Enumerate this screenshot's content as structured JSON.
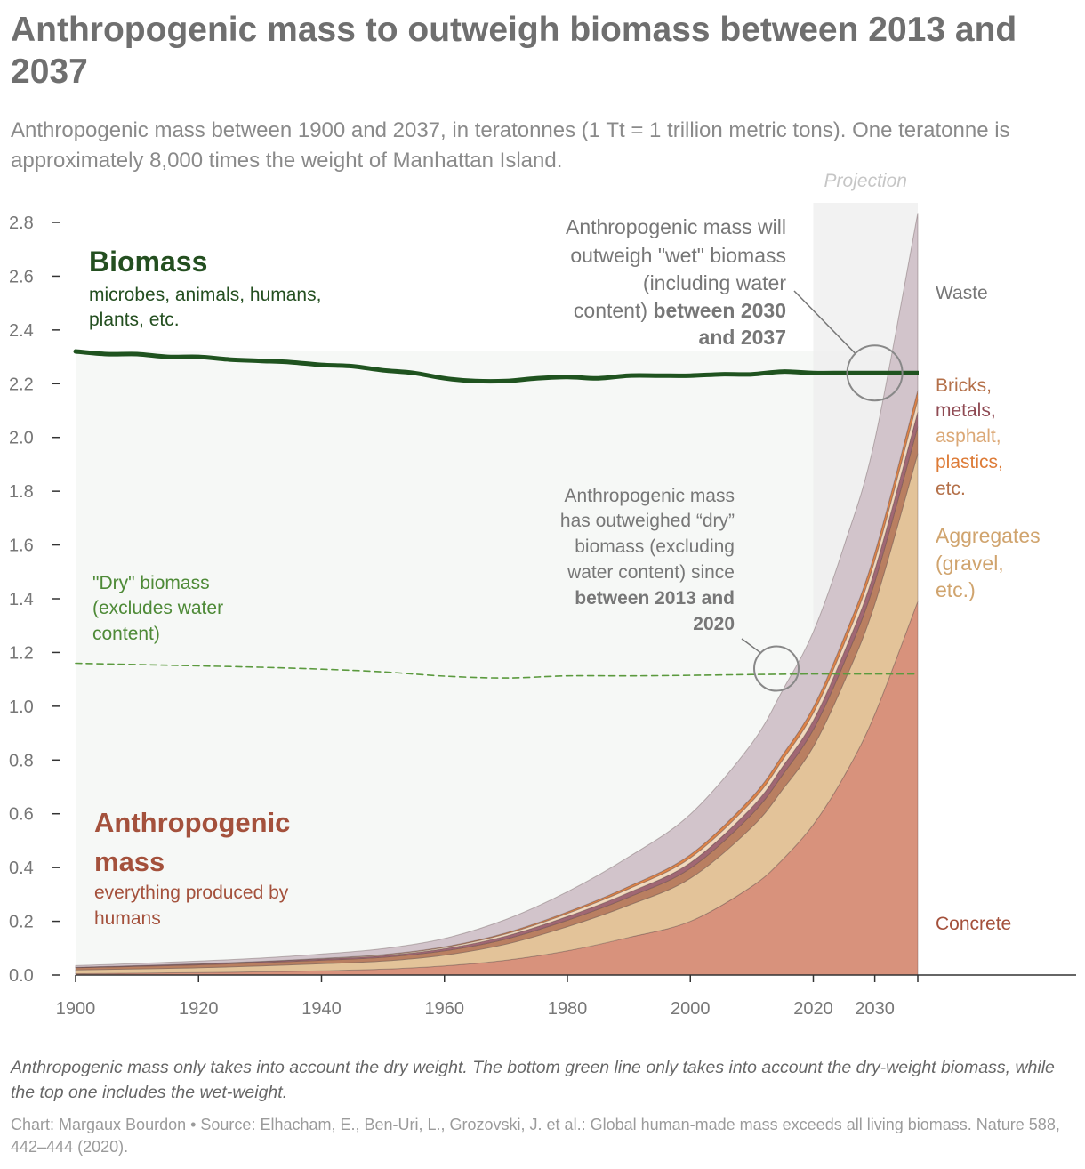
{
  "header": {
    "title": "Anthropogenic mass to outweigh biomass between 2013 and 2037",
    "subtitle": "Anthropogenic mass between 1900 and 2037, in teratonnes (1 Tt = 1 trillion metric tons). One teratonne is approximately 8,000 times the weight of Manhattan Island."
  },
  "footer": {
    "note": "Anthropogenic mass only takes into account the dry weight. The bottom green line only takes into account the dry-weight biomass, while the top one includes the wet-weight.",
    "credit": "Chart: Margaux Bourdon • Source: Elhacham, E., Ben-Uri, L., Grozovski, J. et al.: Global human-made mass exceeds all living biomass. Nature 588, 442–444 (2020)."
  },
  "chart_data": {
    "type": "area",
    "stacked": true,
    "xlim": [
      1900,
      2037
    ],
    "ylim": [
      0,
      2.8
    ],
    "yticks": [
      0.0,
      0.2,
      0.4,
      0.6,
      0.8,
      1.0,
      1.2,
      1.4,
      1.6,
      1.8,
      2.0,
      2.2,
      2.4,
      2.6,
      2.8
    ],
    "ytick_labels": [
      "0.0",
      "0.2",
      "0.4",
      "0.6",
      "0.8",
      "1.0",
      "1.2",
      "1.4",
      "1.6",
      "1.8",
      "2.0",
      "2.2",
      "2.4",
      "2.6",
      "2.8"
    ],
    "xticks": [
      1900,
      1920,
      1940,
      1960,
      1980,
      2000,
      2020,
      2030
    ],
    "xtick_labels": [
      "1900",
      "1920",
      "1940",
      "1960",
      "1980",
      "2000",
      "2020",
      "2030"
    ],
    "grid": false,
    "projection": {
      "start": 2020,
      "end": 2037,
      "label": "Projection"
    },
    "x": [
      1900,
      1910,
      1920,
      1930,
      1940,
      1950,
      1960,
      1970,
      1980,
      1990,
      2000,
      2010,
      2015,
      2020,
      2025,
      2030,
      2037
    ],
    "series": [
      {
        "key": "concrete",
        "color": "#d8927c",
        "values": [
          0.005,
          0.007,
          0.009,
          0.012,
          0.016,
          0.022,
          0.034,
          0.055,
          0.09,
          0.14,
          0.2,
          0.33,
          0.43,
          0.56,
          0.74,
          0.97,
          1.39
        ]
      },
      {
        "key": "aggregates",
        "color": "#e3c399",
        "values": [
          0.014,
          0.016,
          0.018,
          0.022,
          0.026,
          0.03,
          0.04,
          0.06,
          0.09,
          0.12,
          0.16,
          0.22,
          0.26,
          0.29,
          0.35,
          0.41,
          0.55
        ]
      },
      {
        "key": "bricks",
        "color": "#b97f61",
        "values": [
          0.008,
          0.009,
          0.011,
          0.012,
          0.013,
          0.014,
          0.016,
          0.019,
          0.024,
          0.03,
          0.037,
          0.048,
          0.055,
          0.063,
          0.072,
          0.082,
          0.1
        ]
      },
      {
        "key": "metals",
        "color": "#a06773",
        "values": [
          0.002,
          0.003,
          0.003,
          0.004,
          0.005,
          0.006,
          0.008,
          0.011,
          0.014,
          0.017,
          0.021,
          0.026,
          0.03,
          0.034,
          0.039,
          0.045,
          0.055
        ]
      },
      {
        "key": "asphalt",
        "color": "#f1d9be",
        "values": [
          0.0,
          0.0,
          0.001,
          0.001,
          0.002,
          0.003,
          0.005,
          0.008,
          0.011,
          0.014,
          0.018,
          0.022,
          0.025,
          0.028,
          0.031,
          0.035,
          0.045
        ]
      },
      {
        "key": "plastics",
        "color": "#dd8348",
        "values": [
          0.0,
          0.0,
          0.0,
          0.0,
          0.0,
          0.001,
          0.002,
          0.004,
          0.006,
          0.009,
          0.012,
          0.016,
          0.019,
          0.022,
          0.025,
          0.028,
          0.035
        ]
      },
      {
        "key": "waste",
        "color": "#d2c4cb",
        "values": [
          0.006,
          0.008,
          0.01,
          0.012,
          0.016,
          0.022,
          0.031,
          0.05,
          0.075,
          0.11,
          0.15,
          0.2,
          0.24,
          0.28,
          0.34,
          0.42,
          0.66
        ]
      }
    ],
    "lines": [
      {
        "key": "wet_biomass",
        "color": "#1f531f",
        "x": [
          1900,
          1905,
          1910,
          1915,
          1920,
          1925,
          1930,
          1935,
          1940,
          1945,
          1950,
          1955,
          1960,
          1965,
          1970,
          1975,
          1980,
          1985,
          1990,
          1995,
          2000,
          2005,
          2010,
          2015,
          2020,
          2025,
          2030,
          2037
        ],
        "values": [
          2.32,
          2.31,
          2.31,
          2.3,
          2.3,
          2.29,
          2.285,
          2.28,
          2.27,
          2.265,
          2.25,
          2.24,
          2.22,
          2.21,
          2.21,
          2.22,
          2.225,
          2.22,
          2.23,
          2.23,
          2.23,
          2.235,
          2.235,
          2.245,
          2.24,
          2.24,
          2.24,
          2.24
        ]
      },
      {
        "key": "dry_biomass",
        "color": "#5b9a3e",
        "dashed": true,
        "x": [
          1900,
          1910,
          1920,
          1930,
          1940,
          1950,
          1960,
          1970,
          1980,
          1990,
          2000,
          2010,
          2020,
          2030,
          2037
        ],
        "values": [
          1.16,
          1.155,
          1.15,
          1.145,
          1.138,
          1.128,
          1.112,
          1.105,
          1.113,
          1.113,
          1.115,
          1.118,
          1.12,
          1.12,
          1.12
        ]
      }
    ],
    "labels": {
      "biomass_title": "Biomass",
      "biomass_desc_1": "microbes, animals, humans,",
      "biomass_desc_2": "plants, etc.",
      "dry_1": "\"Dry\" biomass",
      "dry_2": "(excludes water",
      "dry_3": "content)",
      "anthro_title_1": "Anthropogenic",
      "anthro_title_2": "mass",
      "anthro_desc_1": "everything produced by",
      "anthro_desc_2": "humans",
      "waste": "Waste",
      "bricks": "Bricks,",
      "metals": "metals,",
      "asphalt": "asphalt,",
      "plastics": "plastics,",
      "etc": "etc.",
      "aggregates_1": "Aggregates",
      "aggregates_2": "(gravel,",
      "aggregates_3": "etc.)",
      "concrete": "Concrete"
    },
    "annotations": {
      "wet_1": "Anthropogenic mass will",
      "wet_2": "outweigh \"wet\" biomass",
      "wet_3": "(including water",
      "wet_4a": "content) ",
      "wet_4b": "between 2030",
      "wet_5": "and 2037",
      "dry_1": "Anthropogenic mass",
      "dry_2": "has outweighed “dry”",
      "dry_3": "biomass (excluding",
      "dry_4": "water content) since",
      "dry_5": "between 2013 and",
      "dry_6": "2020",
      "wet_circle": [
        2030,
        2.24
      ],
      "dry_circle": [
        2014,
        1.14
      ]
    },
    "colors": {
      "biomass_fill": "#f6f8f6",
      "projection_bg": "#eeeeee",
      "biomass_label": "#244f20",
      "dry_label": "#4e8a37",
      "anthro_label": "#a4513c",
      "bricks_label": "#b47049",
      "metals_label": "#8f4a53",
      "asphalt_label": "#dba876",
      "plastics_label": "#dd7b37",
      "aggregates_label": "#d0a46e",
      "axis": "#333333",
      "annotation": "#777777"
    }
  }
}
